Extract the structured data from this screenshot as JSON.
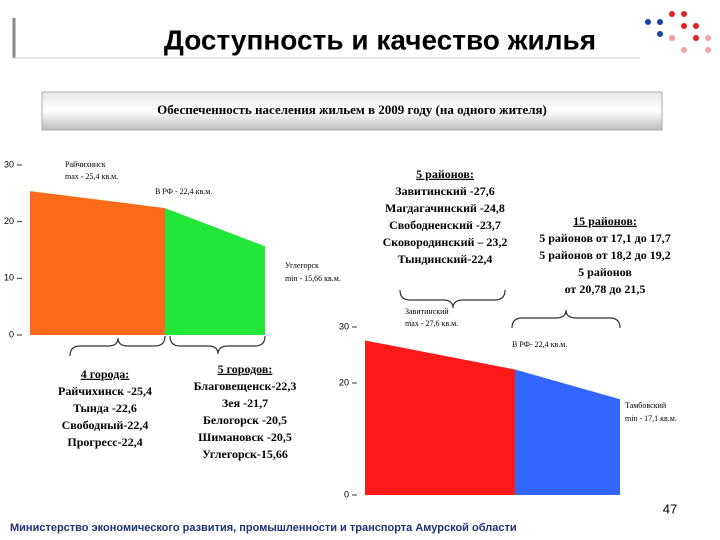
{
  "header": {
    "title": "Доступность и качество жилья",
    "subtitle": "Обеспеченность населения жильем в 2009 году (на одного жителя)"
  },
  "chart_data": [
    {
      "type": "area",
      "ylim": [
        0,
        30
      ],
      "yticks": [
        0,
        10,
        20,
        30
      ],
      "series": [
        {
          "color": "#ff6a1a",
          "values": [
            25.4,
            22.4
          ]
        },
        {
          "color": "#22e63a",
          "values": [
            22.4,
            15.66
          ]
        }
      ],
      "annotations": [
        [
          "Райчихинск",
          "max - 25,4 кв.м."
        ],
        [
          "В РФ - 22,4 кв.м."
        ],
        [
          "Углегорск",
          "min - 15,66 кв.м."
        ]
      ]
    },
    {
      "type": "area",
      "ylim": [
        0,
        30
      ],
      "yticks": [
        0,
        20,
        30
      ],
      "series": [
        {
          "color": "#ff1a1a",
          "values": [
            27.6,
            22.4
          ]
        },
        {
          "color": "#3366ff",
          "values": [
            22.4,
            17.1
          ]
        }
      ],
      "annotations": [
        [
          "Завитинский",
          "max - 27,6 кв.м."
        ],
        [
          "В РФ- 22,4 кв.м."
        ],
        [
          "Тамбовский",
          "min - 17,1 кв.м."
        ]
      ]
    }
  ],
  "callouts": [
    [
      "4 города:",
      "Райчихинск -25,4",
      "Тында -22,6",
      "Свободный-22,4",
      "Прогресс-22,4"
    ],
    [
      "5 городов:",
      "Благовещенск-22,3",
      "Зея -21,7",
      "Белогорск -20,5",
      "Шимановск -20,5",
      "Углегорск-15,66"
    ],
    [
      "5 районов:",
      "Завитинский -27,6",
      "Магдагачинский -24,8",
      "Свободненский -23,7",
      "Сковородинский – 23,2",
      "Тындинский-22,4"
    ],
    [
      "15 районов:",
      "5 районов от 17,1 до 17,7",
      "5 районов от 18,2 до 19,2",
      "5 районов",
      "от 20,78 до 21,5"
    ]
  ],
  "footer": "Министерство экономического развития, промышленности и транспорта Амурской области",
  "page_number": "47"
}
